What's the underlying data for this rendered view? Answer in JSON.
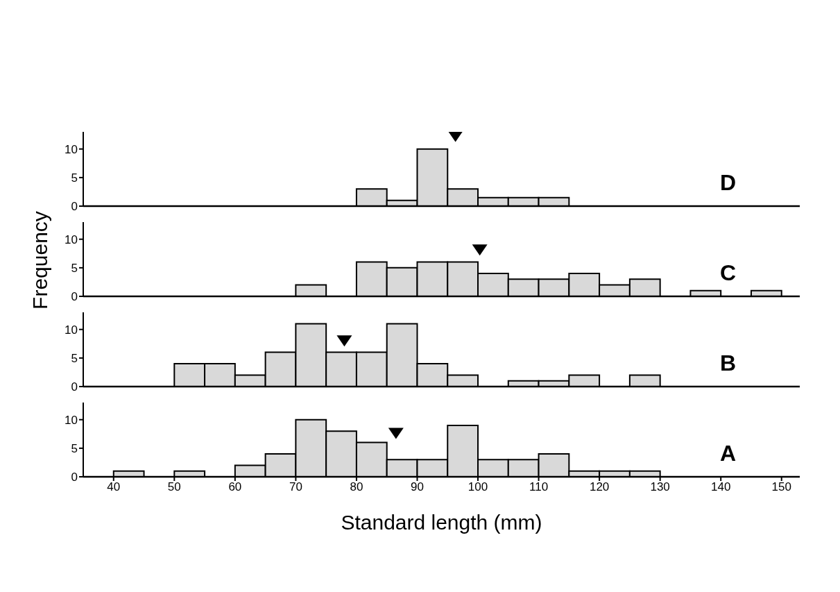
{
  "chart_data": [
    {
      "type": "histogram",
      "title": "D",
      "bins": [
        40,
        45,
        50,
        55,
        60,
        65,
        70,
        75,
        80,
        85,
        90,
        95,
        100,
        105,
        110,
        115,
        120,
        125,
        130,
        135,
        140,
        145,
        150
      ],
      "values": [
        0,
        0,
        0,
        0,
        0,
        0,
        0,
        0,
        3,
        1,
        10,
        3,
        1.5,
        1.5,
        1.5,
        0,
        0,
        0,
        0,
        0,
        0,
        0
      ],
      "color": "#d9d9d9",
      "xlim": [
        35,
        153
      ],
      "xticks": [
        40,
        50,
        60,
        70,
        80,
        90,
        100,
        110,
        120,
        130,
        140,
        150
      ],
      "ylim": [
        0,
        13
      ],
      "yticks": [
        0,
        5,
        10
      ],
      "tick_labels": "y",
      "series": [
        {
          "type": "scatter",
          "x": [
            96.3
          ],
          "values": [
            12.2
          ],
          "marker": "triangle",
          "color": "#000000"
        }
      ]
    },
    {
      "type": "histogram",
      "title": "C",
      "ylabel": "Frequency",
      "bins": [
        40,
        45,
        50,
        55,
        60,
        65,
        70,
        75,
        80,
        85,
        90,
        95,
        100,
        105,
        110,
        115,
        120,
        125,
        130,
        135,
        140,
        145,
        150
      ],
      "values": [
        0,
        0,
        0,
        0,
        0,
        0,
        2,
        0,
        6,
        5,
        6,
        6,
        4,
        3,
        3,
        4,
        2,
        3,
        0,
        1,
        0,
        1
      ],
      "color": "#d9d9d9",
      "xlim": [
        35,
        153
      ],
      "xticks": [
        40,
        50,
        60,
        70,
        80,
        90,
        100,
        110,
        120,
        130,
        140,
        150
      ],
      "ylim": [
        0,
        13
      ],
      "yticks": [
        0,
        5,
        10
      ],
      "tick_labels": "y",
      "series": [
        {
          "type": "scatter",
          "x": [
            100.3
          ],
          "values": [
            8.1
          ],
          "marker": "triangle",
          "color": "#000000"
        }
      ]
    },
    {
      "type": "histogram",
      "title": "B",
      "bins": [
        40,
        45,
        50,
        55,
        60,
        65,
        70,
        75,
        80,
        85,
        90,
        95,
        100,
        105,
        110,
        115,
        120,
        125,
        130,
        135,
        140,
        145,
        150
      ],
      "values": [
        0,
        0,
        4,
        4,
        2,
        6,
        11,
        6,
        6,
        11,
        4,
        2,
        0,
        1,
        1,
        2,
        0,
        2,
        0,
        0,
        0,
        0
      ],
      "color": "#d9d9d9",
      "xlim": [
        35,
        153
      ],
      "xticks": [
        40,
        50,
        60,
        70,
        80,
        90,
        100,
        110,
        120,
        130,
        140,
        150
      ],
      "ylim": [
        0,
        13
      ],
      "yticks": [
        0,
        5,
        10
      ],
      "tick_labels": "y",
      "series": [
        {
          "type": "scatter",
          "x": [
            78
          ],
          "values": [
            8
          ],
          "marker": "triangle",
          "color": "#000000"
        }
      ]
    },
    {
      "type": "histogram",
      "title": "A",
      "xlabel": "Standard length (mm)",
      "bins": [
        40,
        45,
        50,
        55,
        60,
        65,
        70,
        75,
        80,
        85,
        90,
        95,
        100,
        105,
        110,
        115,
        120,
        125,
        130,
        135,
        140,
        145,
        150
      ],
      "values": [
        1,
        0,
        1,
        0,
        2,
        4,
        10,
        8,
        6,
        3,
        3,
        9,
        3,
        3,
        4,
        1,
        1,
        1,
        0,
        0,
        0,
        0
      ],
      "color": "#d9d9d9",
      "xlim": [
        35,
        153
      ],
      "xticks": [
        40,
        50,
        60,
        70,
        80,
        90,
        100,
        110,
        120,
        130,
        140,
        150
      ],
      "ylim": [
        0,
        13
      ],
      "yticks": [
        0,
        5,
        10
      ],
      "series": [
        {
          "type": "scatter",
          "x": [
            86.5
          ],
          "values": [
            7.6
          ],
          "marker": "triangle",
          "color": "#000000"
        }
      ]
    }
  ]
}
